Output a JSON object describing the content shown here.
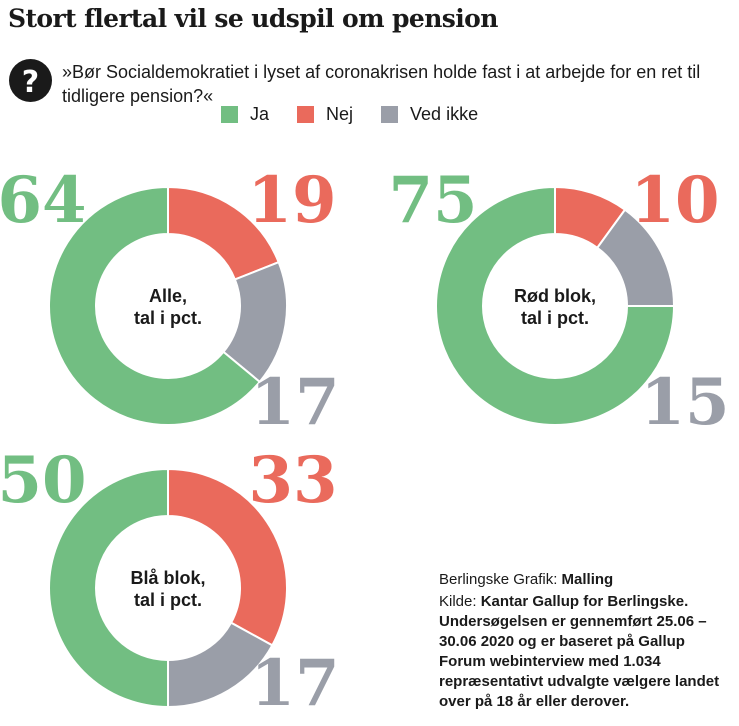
{
  "title": "Stort flertal vil se udspil om pension",
  "question_icon": "question-mark-icon",
  "question": "»Bør Socialdemokratiet i lyset af coronakrisen holde fast i at arbejde for en ret til tidligere pension?«",
  "colors": {
    "ja": "#72be82",
    "nej": "#ea6a5c",
    "ved_ikke": "#9a9ea8"
  },
  "legend": [
    {
      "label": "Ja",
      "color": "#72be82"
    },
    {
      "label": "Nej",
      "color": "#ea6a5c"
    },
    {
      "label": "Ved ikke",
      "color": "#9a9ea8"
    }
  ],
  "chart_data": [
    {
      "type": "pie",
      "center_label": [
        "Alle,",
        "tal i pct."
      ],
      "categories": [
        "Ja",
        "Nej",
        "Ved ikke"
      ],
      "values": [
        64,
        19,
        17
      ]
    },
    {
      "type": "pie",
      "center_label": [
        "Rød blok,",
        "tal i pct."
      ],
      "categories": [
        "Ja",
        "Nej",
        "Ved ikke"
      ],
      "values": [
        75,
        10,
        15
      ]
    },
    {
      "type": "pie",
      "center_label": [
        "Blå blok,",
        "tal i pct."
      ],
      "categories": [
        "Ja",
        "Nej",
        "Ved ikke"
      ],
      "values": [
        50,
        33,
        17
      ]
    }
  ],
  "credit": {
    "grafik_prefix": "Berlingske Grafik: ",
    "grafik_name": "Malling",
    "kilde_prefix": "Kilde: ",
    "kilde_text": "Kantar Gallup for Berlingske. Undersøgelsen er gennemført 25.06 – 30.06 2020 og er baseret på Gallup Forum webinterview med 1.034 repræsentativt udvalgte vælgere landet over på 18 år eller derover."
  }
}
